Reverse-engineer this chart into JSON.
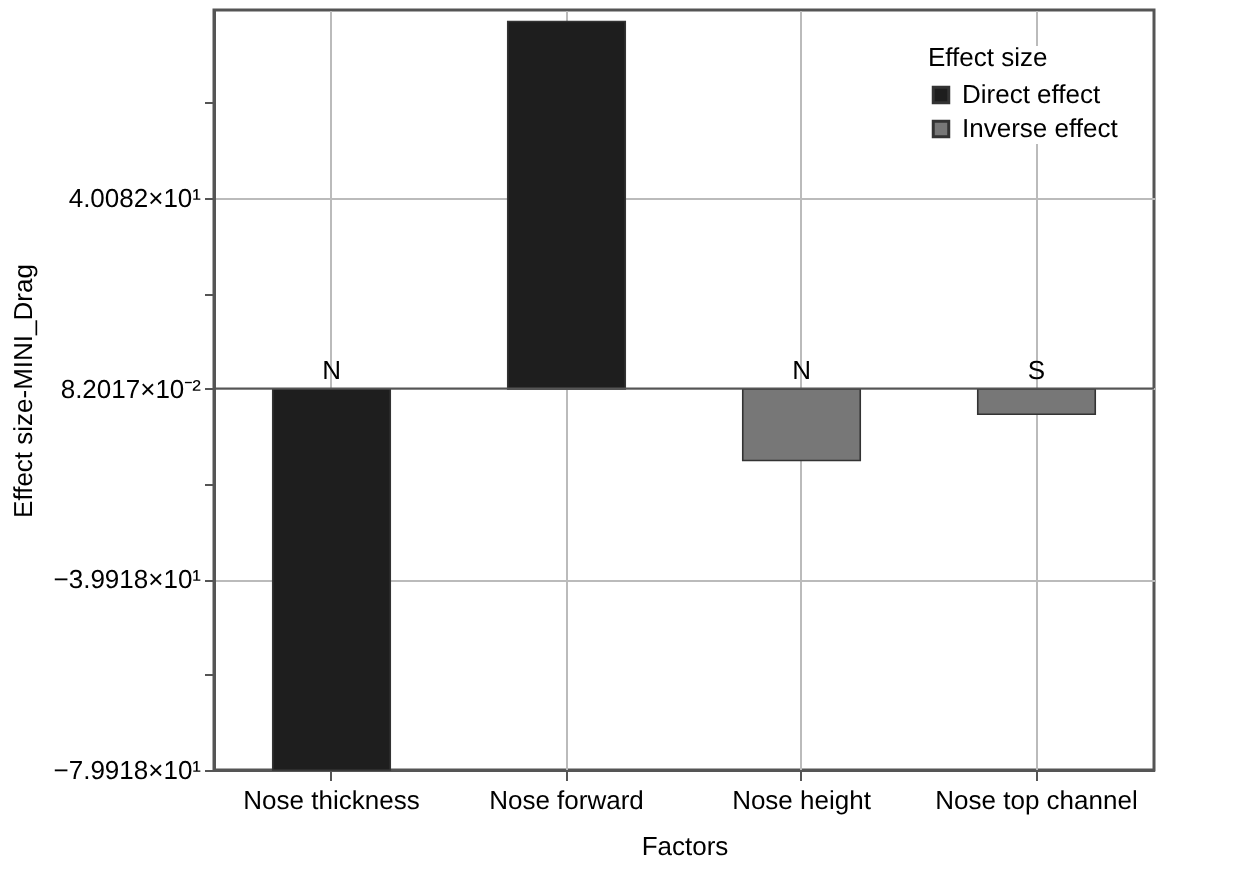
{
  "chart_data": {
    "type": "bar",
    "xlabel": "Factors",
    "ylabel": "Effect size-MINI_Drag",
    "legend_title": "Effect size",
    "categories": [
      "Nose thickness",
      "Nose forward",
      "Nose height",
      "Nose top channel"
    ],
    "ref_lines": [
      {
        "axis": "y",
        "value": 0.082017,
        "label": null
      }
    ],
    "series": [
      {
        "name": "Direct effect",
        "color": "#1e1e1e",
        "values": [
          -79.918,
          77.1,
          null,
          null
        ]
      },
      {
        "name": "Inverse effect",
        "color": "#777777",
        "values": [
          null,
          null,
          -15.0,
          -5.3
        ]
      }
    ],
    "ylim": [
      -79.918,
      79.5
    ],
    "yticks": [
      {
        "value": -79.918,
        "label": "−7.9918×10¹"
      },
      {
        "value": -59.918,
        "label": null
      },
      {
        "value": -39.918,
        "label": "−3.9918×10¹"
      },
      {
        "value": -19.918,
        "label": null
      },
      {
        "value": 0.082017,
        "label": "8.2017×10⁻²"
      },
      {
        "value": 20.082,
        "label": null
      },
      {
        "value": 40.082,
        "label": "4.0082×10¹"
      },
      {
        "value": 60.082,
        "label": null
      }
    ],
    "annotations": [
      {
        "text": "N",
        "x": "Nose thickness",
        "y": 0.082017
      },
      {
        "text": "N",
        "x": "Nose height",
        "y": 0.082017
      },
      {
        "text": "S",
        "x": "Nose top channel",
        "y": 0.082017
      }
    ],
    "grid": true,
    "legend": "top right"
  }
}
